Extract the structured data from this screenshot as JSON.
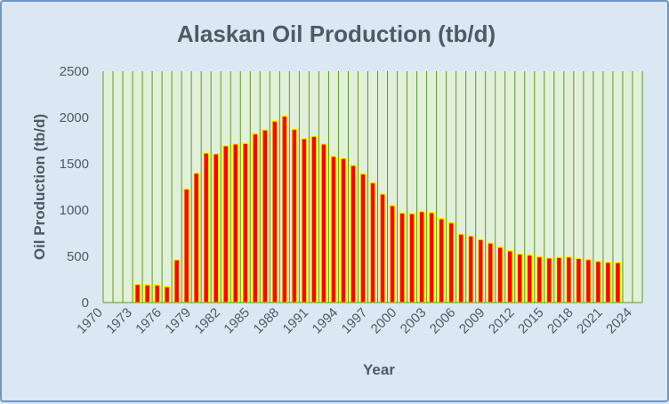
{
  "chart_data": {
    "type": "bar",
    "title": "Alaskan Oil Production (tb/d)",
    "xlabel": "Year",
    "ylabel": "Oil Production (tb/d)",
    "ylim": [
      0,
      2500
    ],
    "yticks": [
      "0",
      "500",
      "1000",
      "1500",
      "2000",
      "2500"
    ],
    "xlim": [
      1970,
      2025
    ],
    "xticks": [
      "1970",
      "1973",
      "1976",
      "1979",
      "1982",
      "1985",
      "1988",
      "1991",
      "1994",
      "1997",
      "2000",
      "2003",
      "2006",
      "2009",
      "2012",
      "2015",
      "2018",
      "2021",
      "2024"
    ],
    "grid": "vertical lines each year",
    "legend": "none",
    "colors": {
      "plot_background": "#e2f0d9",
      "grid": "#5a9a2a",
      "bar_fill": "#ff0000",
      "bar_border": "#ffff00",
      "chart_background": "#dce7f4",
      "text": "#505a66"
    },
    "x": [
      1973,
      1974,
      1975,
      1976,
      1977,
      1978,
      1979,
      1980,
      1981,
      1982,
      1983,
      1984,
      1985,
      1986,
      1987,
      1988,
      1989,
      1990,
      1991,
      1992,
      1993,
      1994,
      1995,
      1996,
      1997,
      1998,
      1999,
      2000,
      2001,
      2002,
      2003,
      2004,
      2005,
      2006,
      2007,
      2008,
      2009,
      2010,
      2011,
      2012,
      2013,
      2014,
      2015,
      2016,
      2017,
      2018,
      2019,
      2020,
      2021,
      2022
    ],
    "values": [
      198,
      193,
      191,
      173,
      464,
      1229,
      1401,
      1617,
      1609,
      1696,
      1714,
      1722,
      1825,
      1867,
      1962,
      2017,
      1874,
      1773,
      1798,
      1714,
      1582,
      1559,
      1484,
      1393,
      1296,
      1175,
      1050,
      970,
      963,
      985,
      974,
      908,
      864,
      741,
      722,
      683,
      645,
      600,
      561,
      526,
      515,
      496,
      483,
      490,
      494,
      479,
      466,
      448,
      437,
      434
    ]
  }
}
